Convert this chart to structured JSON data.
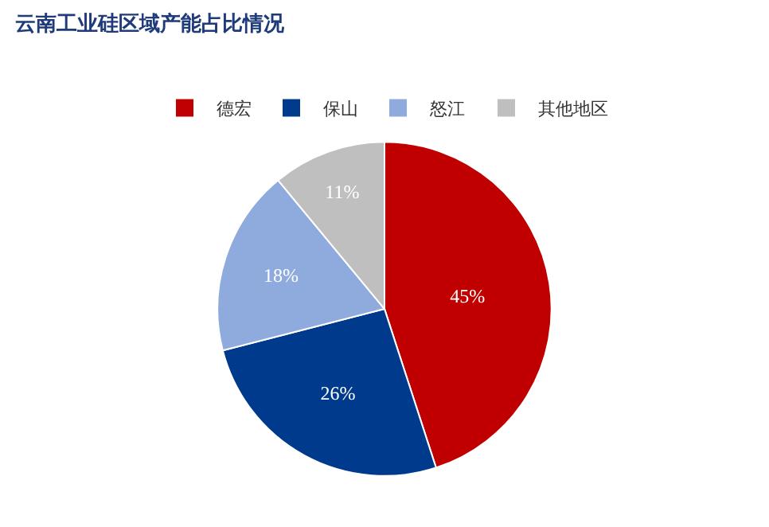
{
  "chart_data": {
    "type": "pie",
    "title": "云南工业硅区域产能占比情况",
    "categories": [
      "德宏",
      "保山",
      "怒江",
      "其他地区"
    ],
    "values": [
      45,
      26,
      18,
      11
    ],
    "value_labels": [
      "45%",
      "26%",
      "18%",
      "11%"
    ],
    "colors": [
      "#c00000",
      "#003a8c",
      "#8faadc",
      "#bfbfbf"
    ],
    "legend": "top"
  }
}
